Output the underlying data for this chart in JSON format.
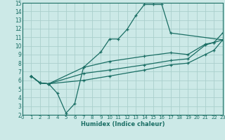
{
  "bg_color": "#cce9e7",
  "grid_color": "#aacfcc",
  "line_color": "#1a6e64",
  "marker": "+",
  "xlabel": "Humidex (Indice chaleur)",
  "xlim": [
    0,
    23
  ],
  "ylim": [
    2,
    15
  ],
  "xticks": [
    0,
    1,
    2,
    3,
    4,
    5,
    6,
    7,
    8,
    9,
    10,
    11,
    12,
    13,
    14,
    15,
    16,
    17,
    18,
    19,
    20,
    21,
    22,
    23
  ],
  "yticks": [
    2,
    3,
    4,
    5,
    6,
    7,
    8,
    9,
    10,
    11,
    12,
    13,
    14,
    15
  ],
  "curves": [
    {
      "x": [
        1,
        2,
        3,
        4,
        5,
        6,
        7,
        9,
        10,
        11,
        12,
        13,
        14,
        15,
        16,
        17,
        23
      ],
      "y": [
        6.5,
        5.7,
        5.6,
        4.5,
        2.2,
        3.3,
        7.5,
        9.3,
        10.8,
        10.8,
        11.9,
        13.5,
        14.8,
        14.8,
        14.8,
        11.5,
        10.7
      ]
    },
    {
      "x": [
        1,
        2,
        3,
        7,
        10,
        14,
        17,
        19,
        21,
        22,
        23
      ],
      "y": [
        6.5,
        5.7,
        5.6,
        7.5,
        8.2,
        8.8,
        9.2,
        9.0,
        10.2,
        10.4,
        11.5
      ]
    },
    {
      "x": [
        1,
        2,
        3,
        7,
        10,
        14,
        17,
        19,
        21,
        22,
        23
      ],
      "y": [
        6.5,
        5.7,
        5.6,
        6.8,
        7.2,
        7.8,
        8.3,
        8.5,
        10.1,
        10.4,
        10.7
      ]
    },
    {
      "x": [
        1,
        2,
        3,
        7,
        10,
        14,
        17,
        19,
        21,
        22,
        23
      ],
      "y": [
        6.5,
        5.7,
        5.6,
        6.0,
        6.5,
        7.2,
        7.8,
        8.0,
        9.0,
        9.5,
        10.7
      ]
    }
  ]
}
